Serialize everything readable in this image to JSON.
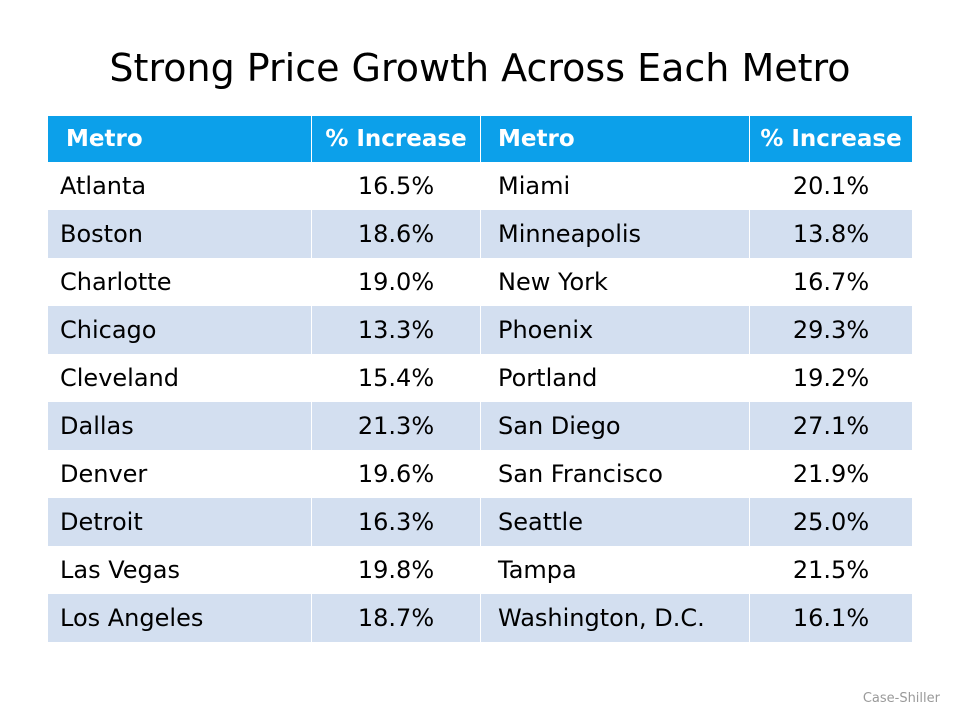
{
  "slide": {
    "title": "Strong Price Growth Across Each Metro",
    "source": "Case-Shiller"
  },
  "table": {
    "headers": [
      "Metro",
      "% Increase",
      "Metro",
      "% Increase"
    ],
    "rows": [
      [
        "Atlanta",
        "16.5%",
        "Miami",
        "20.1%"
      ],
      [
        "Boston",
        "18.6%",
        "Minneapolis",
        "13.8%"
      ],
      [
        "Charlotte",
        "19.0%",
        "New York",
        "16.7%"
      ],
      [
        "Chicago",
        "13.3%",
        "Phoenix",
        "29.3%"
      ],
      [
        "Cleveland",
        "15.4%",
        "Portland",
        "19.2%"
      ],
      [
        "Dallas",
        "21.3%",
        "San Diego",
        "27.1%"
      ],
      [
        "Denver",
        "19.6%",
        "San Francisco",
        "21.9%"
      ],
      [
        "Detroit",
        "16.3%",
        "Seattle",
        "25.0%"
      ],
      [
        "Las Vegas",
        "19.8%",
        "Tampa",
        "21.5%"
      ],
      [
        "Los Angeles",
        "18.7%",
        "Washington, D.C.",
        "16.1%"
      ]
    ]
  },
  "colors": {
    "header_bg": "#0ca0ea",
    "band_bg": "#d3dff0"
  }
}
